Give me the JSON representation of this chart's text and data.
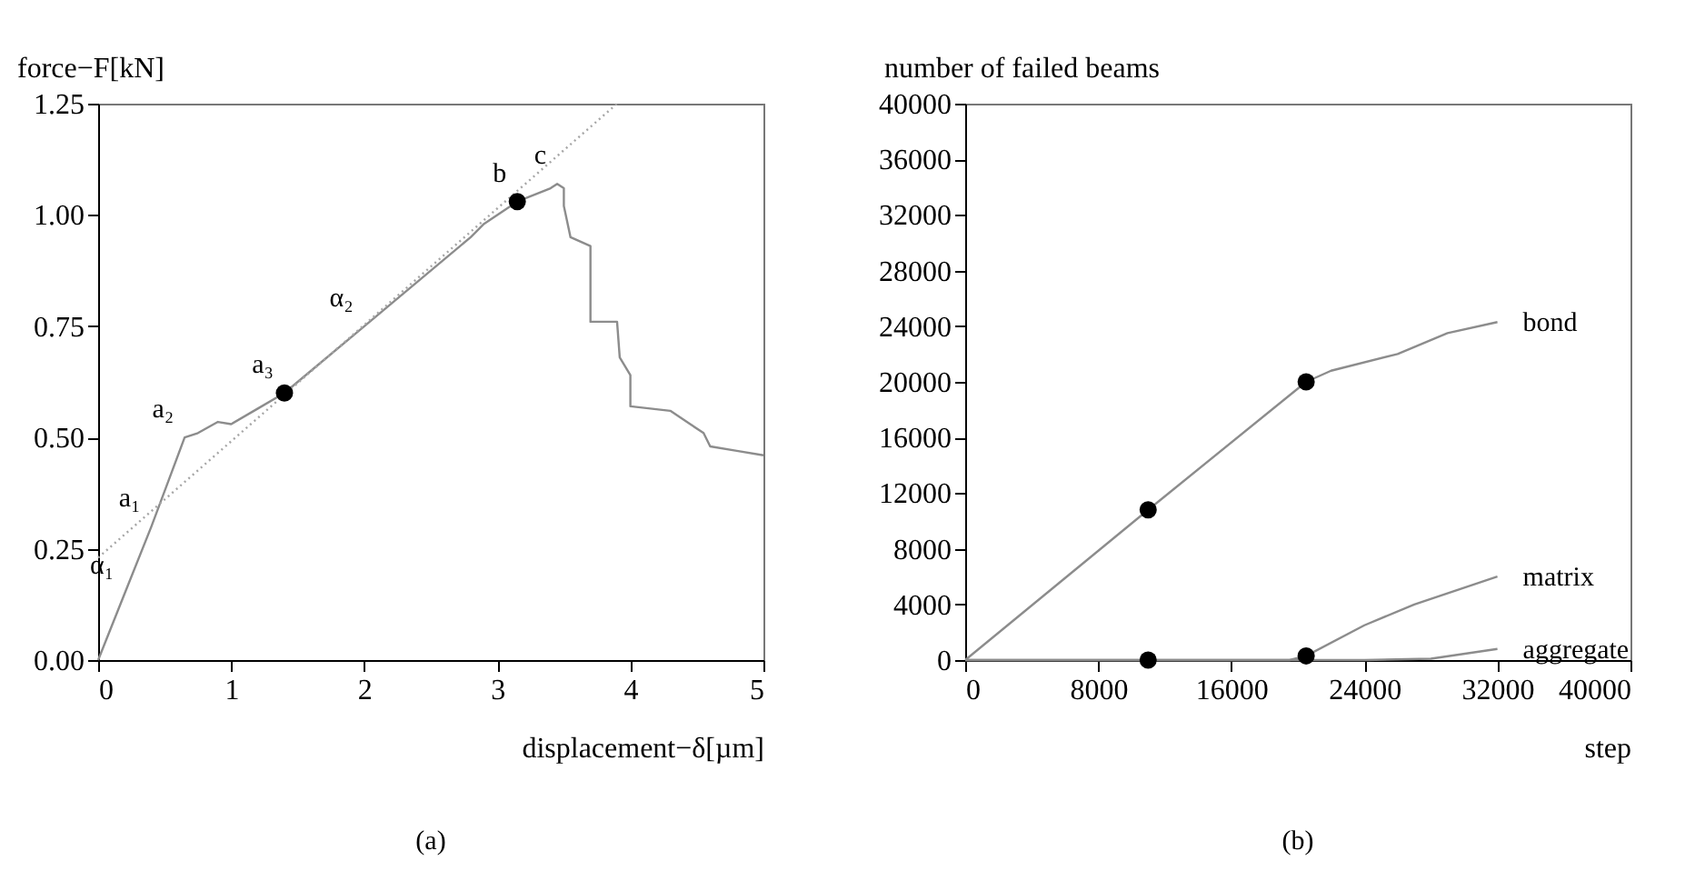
{
  "chart_data": [
    {
      "type": "line",
      "title": "(a)",
      "xlabel": "displacement−δ[µm]",
      "ylabel": "force−F[kN]",
      "xlim": [
        0,
        5
      ],
      "ylim": [
        0,
        1.25
      ],
      "xticks": [
        0,
        1,
        2,
        3,
        4,
        5
      ],
      "yticks": [
        {
          "value": 0,
          "label": "0.00"
        },
        {
          "value": 0.25,
          "label": "0.25"
        },
        {
          "value": 0.5,
          "label": "0.50"
        },
        {
          "value": 0.75,
          "label": "0.75"
        },
        {
          "value": 1,
          "label": "1.00"
        },
        {
          "value": 1.25,
          "label": "1.25"
        }
      ],
      "grid": false,
      "series": [
        {
          "color": "#8c8c8c",
          "line_style": "solid",
          "x": [
            0,
            0.2,
            0.4,
            0.55,
            0.65,
            0.75,
            0.9,
            1.0,
            1.2,
            1.4,
            1.6,
            2.0,
            2.4,
            2.8,
            2.9,
            3.15,
            3.4,
            3.45,
            3.5,
            3.5,
            3.55,
            3.7,
            3.7,
            3.7,
            3.9,
            3.92,
            4.0,
            4.0,
            4.3,
            4.45,
            4.55,
            4.6,
            4.8,
            5.0
          ],
          "values": [
            0,
            0.15,
            0.3,
            0.42,
            0.5,
            0.51,
            0.535,
            0.53,
            0.565,
            0.6,
            0.65,
            0.75,
            0.85,
            0.95,
            0.98,
            1.03,
            1.06,
            1.07,
            1.06,
            1.02,
            0.95,
            0.93,
            0.88,
            0.76,
            0.76,
            0.68,
            0.64,
            0.57,
            0.56,
            0.53,
            0.51,
            0.48,
            0.47,
            0.46
          ]
        },
        {
          "color": "#a6a6a6",
          "line_style": "dotted",
          "x": [
            0,
            3.9
          ],
          "values": [
            0.23,
            1.25
          ]
        },
        {
          "type": "scatter",
          "marker": "circle",
          "color": "#000000",
          "x": [
            1.4,
            3.15
          ],
          "values": [
            0.6,
            1.03
          ]
        }
      ],
      "annotations": [
        {
          "text": "α₁",
          "x": 0.2,
          "y": 0.15
        },
        {
          "text": "a₁",
          "x": 0.4,
          "y": 0.3
        },
        {
          "text": "a₂",
          "x": 0.65,
          "y": 0.5
        },
        {
          "text": "a₃",
          "x": 1.4,
          "y": 0.6
        },
        {
          "text": "α₂",
          "x": 2.0,
          "y": 0.75
        },
        {
          "text": "b",
          "x": 3.15,
          "y": 1.03
        },
        {
          "text": "c",
          "x": 3.45,
          "y": 1.07
        }
      ]
    },
    {
      "type": "line",
      "title": "(b)",
      "xlabel": "step",
      "ylabel": "number of failed beams",
      "xlim": [
        0,
        40000
      ],
      "ylim": [
        0,
        40000
      ],
      "xticks": [
        0,
        8000,
        16000,
        24000,
        32000,
        40000
      ],
      "yticks": [
        0,
        4000,
        8000,
        12000,
        16000,
        20000,
        24000,
        28000,
        32000,
        36000,
        40000
      ],
      "grid": false,
      "series": [
        {
          "name": "bond",
          "color": "#8c8c8c",
          "x": [
            0,
            11000,
            20500,
            22000,
            26000,
            29000,
            32000
          ],
          "values": [
            0,
            10800,
            20000,
            20800,
            22000,
            23500,
            24300
          ]
        },
        {
          "name": "matrix",
          "color": "#8c8c8c",
          "x": [
            0,
            19500,
            20500,
            24000,
            27000,
            32000
          ],
          "values": [
            0,
            0,
            300,
            2500,
            4000,
            6000
          ]
        },
        {
          "name": "aggregate",
          "color": "#8c8c8c",
          "x": [
            0,
            24000,
            28000,
            32000
          ],
          "values": [
            0,
            0,
            100,
            800
          ]
        },
        {
          "type": "scatter",
          "marker": "circle",
          "color": "#000000",
          "x": [
            11000,
            20500,
            11000,
            20500
          ],
          "values": [
            10800,
            20000,
            0,
            300
          ]
        }
      ]
    }
  ]
}
